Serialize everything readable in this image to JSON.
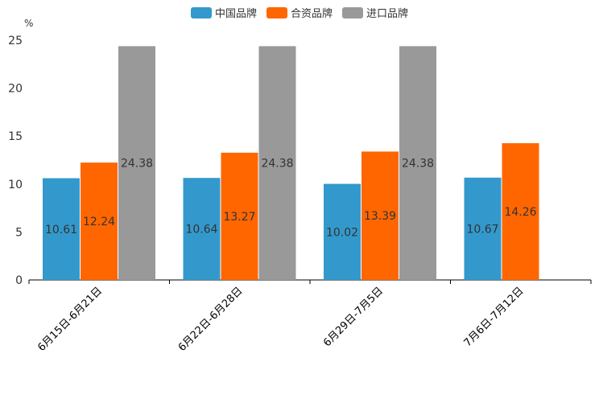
{
  "chart_data": {
    "type": "bar",
    "title": "",
    "unit_label": "%",
    "xlabel": "",
    "ylabel": "%",
    "ylim": [
      0,
      25
    ],
    "yticks": [
      0,
      5,
      10,
      15,
      20,
      25
    ],
    "grid": false,
    "legend_position": "top-center",
    "categories": [
      "6月15日-6月21日",
      "6月22日-6月28日",
      "6月29日-7月5日",
      "7月6日-7月12日"
    ],
    "series": [
      {
        "name": "中国品牌",
        "color": "#3399cc",
        "values": [
          10.61,
          10.64,
          10.02,
          10.67
        ]
      },
      {
        "name": "合资品牌",
        "color": "#ff6600",
        "values": [
          12.24,
          13.27,
          13.39,
          14.26
        ]
      },
      {
        "name": "进口品牌",
        "color": "#999999",
        "values": [
          24.38,
          24.38,
          24.38,
          null
        ]
      }
    ]
  }
}
